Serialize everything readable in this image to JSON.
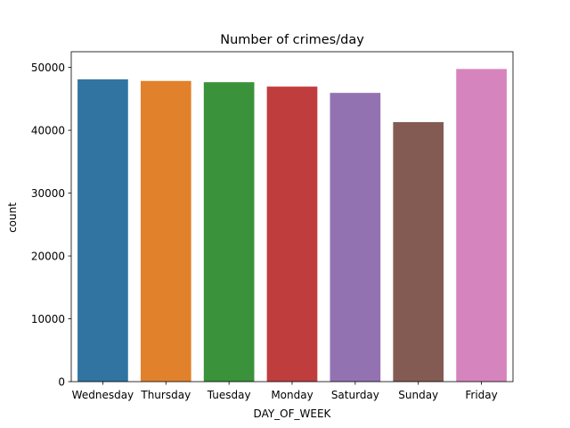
{
  "chart_data": {
    "type": "bar",
    "title": "Number of crimes/day",
    "xlabel": "DAY_OF_WEEK",
    "ylabel": "count",
    "categories": [
      "Wednesday",
      "Thursday",
      "Tuesday",
      "Monday",
      "Saturday",
      "Sunday",
      "Friday"
    ],
    "values": [
      48100,
      47850,
      47650,
      46950,
      45950,
      41300,
      49750
    ],
    "colors": [
      "#3274a1",
      "#e1812c",
      "#3a923a",
      "#c03d3e",
      "#9372b2",
      "#845b53",
      "#d684bd"
    ],
    "ylim": [
      0,
      52500
    ],
    "yticks": [
      0,
      10000,
      20000,
      30000,
      40000,
      50000
    ],
    "grid": false,
    "legend": "none"
  }
}
